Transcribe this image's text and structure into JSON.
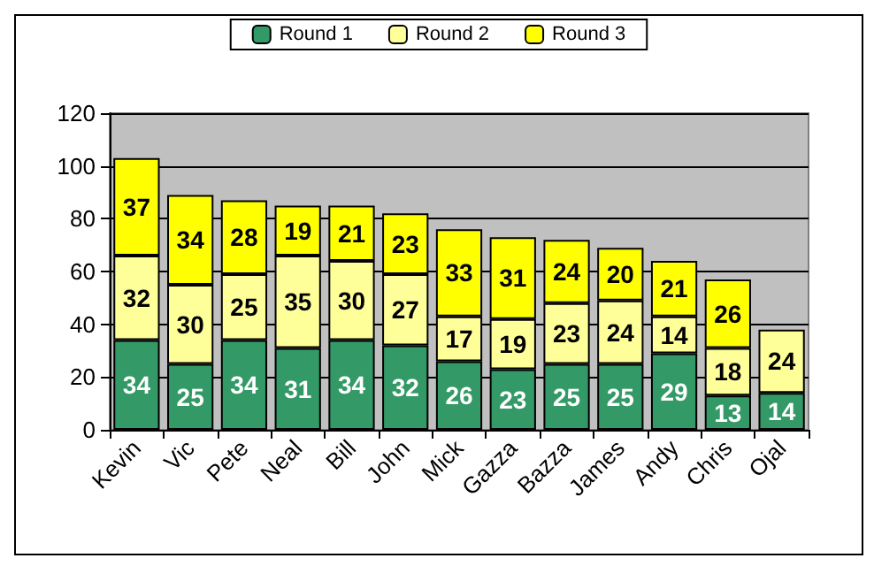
{
  "chart_data": {
    "type": "bar",
    "stacked": true,
    "categories": [
      "Kevin",
      "Vic",
      "Pete",
      "Neal",
      "Bill",
      "John",
      "Mick",
      "Gazza",
      "Bazza",
      "James",
      "Andy",
      "Chris",
      "Ojal"
    ],
    "series": [
      {
        "name": "Round 1",
        "color": "#339966",
        "values": [
          34,
          25,
          34,
          31,
          34,
          32,
          26,
          23,
          25,
          25,
          29,
          13,
          14
        ]
      },
      {
        "name": "Round 2",
        "color": "#ffff99",
        "values": [
          32,
          30,
          25,
          35,
          30,
          27,
          17,
          19,
          23,
          24,
          14,
          18,
          24
        ]
      },
      {
        "name": "Round 3",
        "color": "#ffff00",
        "values": [
          37,
          34,
          28,
          19,
          21,
          23,
          33,
          31,
          24,
          20,
          21,
          26,
          null
        ]
      }
    ],
    "ylim": [
      0,
      120
    ],
    "yticks": [
      0,
      20,
      40,
      60,
      80,
      100,
      120
    ],
    "grid": "y",
    "legend": "top",
    "data_labels": true
  }
}
